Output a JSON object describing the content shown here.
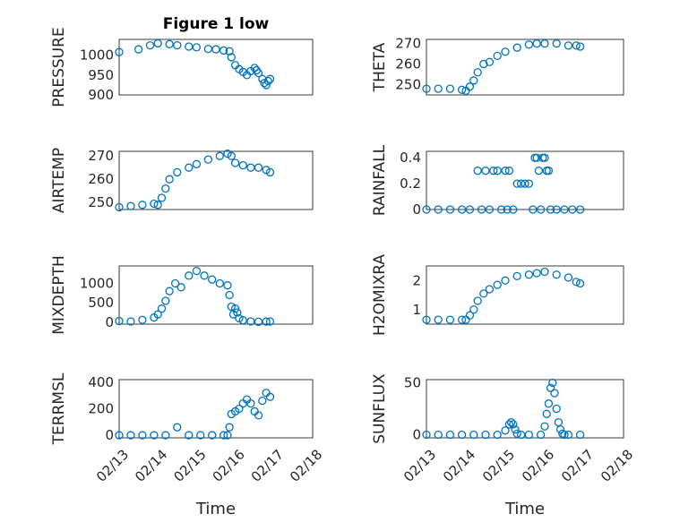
{
  "figure": {
    "title": "Figure 1 low",
    "colors": {
      "marker": "#0072bd",
      "axis": "#262626",
      "grid": "#d9d9d9"
    }
  },
  "chart_data": [
    {
      "type": "scatter",
      "title": "Figure 1 low",
      "ylabel": "PRESSURE",
      "xlabel": "",
      "ylim": [
        900,
        1040
      ],
      "yticks": [
        900,
        950,
        1000
      ],
      "grid": true,
      "x_tick_labels": [
        "02/13",
        "02/14",
        "02/15",
        "02/16",
        "02/17",
        "02/18"
      ],
      "xlim_days": [
        13,
        18
      ],
      "series": [
        {
          "x": [
            13.0,
            13.5,
            13.8,
            14.0,
            14.3,
            14.5,
            14.8,
            15.0,
            15.3,
            15.5,
            15.7,
            15.85,
            15.9,
            16.0,
            16.1,
            16.2,
            16.3,
            16.4,
            16.5,
            16.55,
            16.6,
            16.7,
            16.75,
            16.8,
            16.85,
            16.9
          ],
          "y": [
            1008,
            1015,
            1025,
            1030,
            1028,
            1025,
            1022,
            1020,
            1016,
            1015,
            1012,
            1010,
            995,
            975,
            965,
            958,
            950,
            960,
            968,
            962,
            955,
            940,
            930,
            925,
            935,
            940
          ]
        }
      ]
    },
    {
      "type": "scatter",
      "ylabel": "THETA",
      "xlabel": "",
      "ylim": [
        245,
        272
      ],
      "yticks": [
        250,
        260,
        270
      ],
      "grid": true,
      "x_tick_labels": [
        "02/13",
        "02/14",
        "02/15",
        "02/16",
        "02/17",
        "02/18"
      ],
      "xlim_days": [
        13,
        18
      ],
      "series": [
        {
          "x": [
            13.0,
            13.3,
            13.6,
            13.9,
            14.0,
            14.1,
            14.2,
            14.3,
            14.45,
            14.6,
            14.8,
            15.0,
            15.3,
            15.6,
            15.8,
            16.0,
            16.3,
            16.6,
            16.8,
            16.9
          ],
          "y": [
            248,
            248,
            248,
            247.5,
            247,
            249,
            252,
            256,
            260,
            261,
            264,
            266,
            268,
            269.5,
            270,
            270,
            270,
            269,
            269,
            268.5
          ]
        }
      ]
    },
    {
      "type": "scatter",
      "ylabel": "AIR_TEMP",
      "xlabel": "",
      "ylim": [
        247,
        272
      ],
      "yticks": [
        250,
        260,
        270
      ],
      "grid": true,
      "x_tick_labels": [
        "02/13",
        "02/14",
        "02/15",
        "02/16",
        "02/17",
        "02/18"
      ],
      "xlim_days": [
        13,
        18
      ],
      "series": [
        {
          "x": [
            13.0,
            13.3,
            13.6,
            13.9,
            14.0,
            14.1,
            14.2,
            14.3,
            14.5,
            14.8,
            15.0,
            15.3,
            15.6,
            15.8,
            15.9,
            16.0,
            16.2,
            16.4,
            16.6,
            16.8,
            16.9
          ],
          "y": [
            248,
            248.5,
            249,
            249.5,
            249,
            252,
            256,
            260,
            263,
            265,
            266.5,
            268.5,
            270,
            271,
            270,
            267,
            266,
            265,
            265,
            264,
            263
          ]
        }
      ]
    },
    {
      "type": "scatter",
      "ylabel": "RAINFALL",
      "xlabel": "",
      "ylim": [
        0,
        0.45
      ],
      "yticks": [
        0,
        0.2,
        0.4
      ],
      "grid": true,
      "x_tick_labels": [
        "02/13",
        "02/14",
        "02/15",
        "02/16",
        "02/17",
        "02/18"
      ],
      "xlim_days": [
        13,
        18
      ],
      "series": [
        {
          "x": [
            13.0,
            13.3,
            13.6,
            13.9,
            14.1,
            14.3,
            14.4,
            14.5,
            14.6,
            14.7,
            14.8,
            14.9,
            15.0,
            15.05,
            15.1,
            15.2,
            15.3,
            15.4,
            15.5,
            15.6,
            15.7,
            15.75,
            15.8,
            15.85,
            15.9,
            15.95,
            16.0,
            16.05,
            16.1,
            16.15,
            16.3,
            16.5,
            16.7,
            16.9
          ],
          "y": [
            0,
            0,
            0,
            0,
            0,
            0.3,
            0,
            0.3,
            0,
            0.3,
            0.3,
            0,
            0.3,
            0,
            0.3,
            0,
            0.2,
            0.2,
            0.2,
            0.2,
            0,
            0.4,
            0.4,
            0.3,
            0,
            0.4,
            0.4,
            0.3,
            0.3,
            0,
            0,
            0,
            0,
            0
          ]
        }
      ]
    },
    {
      "type": "scatter",
      "ylabel": "MIXDEPTH",
      "xlabel": "",
      "ylim": [
        -50,
        1450
      ],
      "yticks": [
        0,
        500,
        1000
      ],
      "grid": true,
      "x_tick_labels": [
        "02/13",
        "02/14",
        "02/15",
        "02/16",
        "02/17",
        "02/18"
      ],
      "xlim_days": [
        13,
        18
      ],
      "series": [
        {
          "x": [
            13.0,
            13.3,
            13.6,
            13.9,
            14.0,
            14.1,
            14.2,
            14.3,
            14.45,
            14.6,
            14.8,
            15.0,
            15.2,
            15.4,
            15.6,
            15.8,
            15.85,
            15.9,
            15.95,
            16.0,
            16.05,
            16.1,
            16.2,
            16.4,
            16.6,
            16.8,
            16.9
          ],
          "y": [
            30,
            20,
            60,
            120,
            200,
            350,
            550,
            800,
            1000,
            900,
            1200,
            1320,
            1200,
            1100,
            1000,
            950,
            700,
            400,
            200,
            350,
            250,
            100,
            50,
            20,
            10,
            15,
            20
          ]
        }
      ]
    },
    {
      "type": "scatter",
      "ylabel": "H2OMIXRA",
      "xlabel": "",
      "ylim": [
        0.5,
        2.5
      ],
      "yticks": [
        1,
        2
      ],
      "grid": true,
      "x_tick_labels": [
        "02/13",
        "02/14",
        "02/15",
        "02/16",
        "02/17",
        "02/18"
      ],
      "xlim_days": [
        13,
        18
      ],
      "series": [
        {
          "x": [
            13.0,
            13.3,
            13.6,
            13.9,
            14.0,
            14.1,
            14.2,
            14.3,
            14.45,
            14.6,
            14.8,
            15.0,
            15.3,
            15.6,
            15.8,
            16.0,
            16.3,
            16.6,
            16.8,
            16.9
          ],
          "y": [
            0.65,
            0.65,
            0.65,
            0.65,
            0.65,
            0.8,
            1.0,
            1.3,
            1.55,
            1.7,
            1.85,
            2.0,
            2.15,
            2.2,
            2.25,
            2.3,
            2.2,
            2.1,
            1.95,
            1.9
          ]
        }
      ]
    },
    {
      "type": "scatter",
      "ylabel": "TERR_MSL",
      "xlabel": "Time",
      "ylim": [
        -20,
        420
      ],
      "yticks": [
        0,
        200,
        400
      ],
      "grid": true,
      "x_tick_labels": [
        "02/13",
        "02/14",
        "02/15",
        "02/16",
        "02/17",
        "02/18"
      ],
      "xlim_days": [
        13,
        18
      ],
      "series": [
        {
          "x": [
            13.0,
            13.3,
            13.6,
            13.9,
            14.2,
            14.5,
            14.8,
            15.1,
            15.4,
            15.7,
            15.8,
            15.85,
            15.9,
            16.0,
            16.1,
            16.2,
            16.3,
            16.4,
            16.5,
            16.6,
            16.7,
            16.8,
            16.9
          ],
          "y": [
            0,
            0,
            0,
            0,
            0,
            60,
            0,
            0,
            0,
            0,
            0,
            60,
            160,
            180,
            200,
            240,
            270,
            240,
            180,
            150,
            260,
            320,
            290
          ]
        }
      ]
    },
    {
      "type": "scatter",
      "ylabel": "SUN_FLUX",
      "xlabel": "Time",
      "ylim": [
        -3,
        53
      ],
      "yticks": [
        0,
        50
      ],
      "grid": true,
      "x_tick_labels": [
        "02/13",
        "02/14",
        "02/15",
        "02/16",
        "02/17",
        "02/18"
      ],
      "xlim_days": [
        13,
        18
      ],
      "series": [
        {
          "x": [
            13.0,
            13.3,
            13.6,
            13.9,
            14.2,
            14.5,
            14.8,
            15.0,
            15.1,
            15.15,
            15.2,
            15.25,
            15.3,
            15.4,
            15.6,
            15.9,
            16.0,
            16.05,
            16.1,
            16.15,
            16.2,
            16.25,
            16.3,
            16.35,
            16.4,
            16.45,
            16.5,
            16.6,
            16.9
          ],
          "y": [
            0,
            0,
            0,
            0,
            0,
            0,
            0,
            4,
            10,
            12,
            10,
            5,
            1,
            0,
            0,
            0,
            8,
            20,
            30,
            45,
            50,
            40,
            25,
            12,
            5,
            1,
            0,
            0,
            0
          ]
        }
      ]
    }
  ]
}
